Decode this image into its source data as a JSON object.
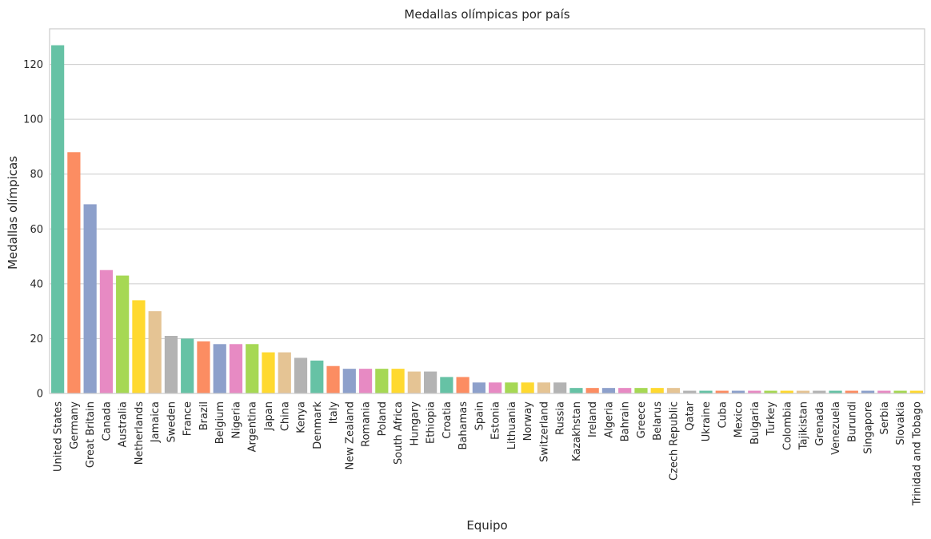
{
  "chart_data": {
    "type": "bar",
    "title": "Medallas olímpicas por país",
    "xlabel": "Equipo",
    "ylabel": "Medallas olímpicas",
    "ylim": [
      0,
      133
    ],
    "yticks": [
      0,
      20,
      40,
      60,
      80,
      100,
      120
    ],
    "grid": "y",
    "legend": "none",
    "palette": [
      "#66c2a5",
      "#fc8d62",
      "#8da0cb",
      "#e78ac3",
      "#a6d854",
      "#ffd92f",
      "#e5c494",
      "#b3b3b3"
    ],
    "categories": [
      "United States",
      "Germany",
      "Great Britain",
      "Canada",
      "Australia",
      "Netherlands",
      "Jamaica",
      "Sweden",
      "France",
      "Brazil",
      "Belgium",
      "Nigeria",
      "Argentina",
      "Japan",
      "China",
      "Kenya",
      "Denmark",
      "Italy",
      "New Zealand",
      "Romania",
      "Poland",
      "South Africa",
      "Hungary",
      "Ethiopia",
      "Croatia",
      "Bahamas",
      "Spain",
      "Estonia",
      "Lithuania",
      "Norway",
      "Switzerland",
      "Russia",
      "Kazakhstan",
      "Ireland",
      "Algeria",
      "Bahrain",
      "Greece",
      "Belarus",
      "Czech Republic",
      "Qatar",
      "Ukraine",
      "Cuba",
      "Mexico",
      "Bulgaria",
      "Turkey",
      "Colombia",
      "Tajikistan",
      "Grenada",
      "Venezuela",
      "Burundi",
      "Singapore",
      "Serbia",
      "Slovakia",
      "Trinidad and Tobago"
    ],
    "values": [
      127,
      88,
      69,
      45,
      43,
      34,
      30,
      21,
      20,
      19,
      18,
      18,
      18,
      15,
      15,
      13,
      12,
      10,
      9,
      9,
      9,
      9,
      8,
      8,
      6,
      6,
      4,
      4,
      4,
      4,
      4,
      4,
      2,
      2,
      2,
      2,
      2,
      2,
      2,
      1,
      1,
      1,
      1,
      1,
      1,
      1,
      1,
      1,
      1,
      1,
      1,
      1,
      1,
      1
    ]
  }
}
